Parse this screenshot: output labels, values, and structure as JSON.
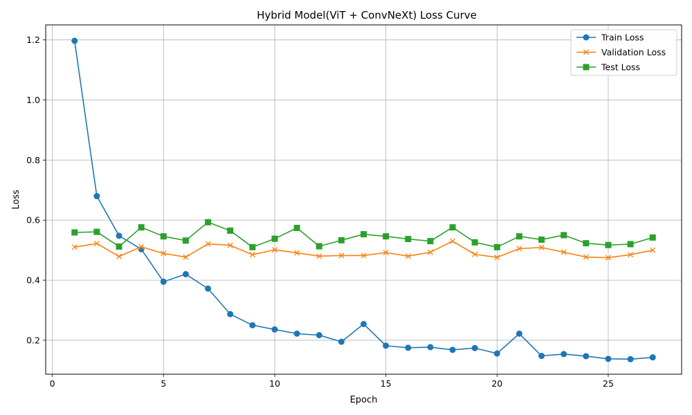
{
  "chart_data": {
    "type": "line",
    "title": "Hybrid Model(ViT + ConvNeXt) Loss Curve",
    "xlabel": "Epoch",
    "ylabel": "Loss",
    "xlim": [
      -0.3,
      28.3
    ],
    "ylim": [
      0.087,
      1.25
    ],
    "xticks": [
      0,
      5,
      10,
      15,
      20,
      25
    ],
    "xtick_labels": [
      "0",
      "5",
      "10",
      "15",
      "20",
      "25"
    ],
    "yticks": [
      0.2,
      0.4,
      0.6,
      0.8,
      1.0,
      1.2
    ],
    "ytick_labels": [
      "0.2",
      "0.4",
      "0.6",
      "0.8",
      "1.0",
      "1.2"
    ],
    "grid": true,
    "legend_position": "top-right",
    "x": [
      1,
      2,
      3,
      4,
      5,
      6,
      7,
      8,
      9,
      10,
      11,
      12,
      13,
      14,
      15,
      16,
      17,
      18,
      19,
      20,
      21,
      22,
      23,
      24,
      25,
      26,
      27
    ],
    "series": [
      {
        "name": "Train Loss",
        "color": "#1f77b4",
        "marker": "circle",
        "values": [
          1.197,
          0.68,
          0.548,
          0.503,
          0.395,
          0.42,
          0.372,
          0.287,
          0.25,
          0.236,
          0.222,
          0.217,
          0.195,
          0.254,
          0.182,
          0.175,
          0.177,
          0.168,
          0.174,
          0.156,
          0.222,
          0.148,
          0.154,
          0.147,
          0.138,
          0.137,
          0.143
        ]
      },
      {
        "name": "Validation Loss",
        "color": "#ff7f0e",
        "marker": "x",
        "values": [
          0.51,
          0.522,
          0.479,
          0.511,
          0.489,
          0.477,
          0.521,
          0.516,
          0.485,
          0.501,
          0.491,
          0.48,
          0.482,
          0.482,
          0.492,
          0.48,
          0.493,
          0.53,
          0.486,
          0.476,
          0.505,
          0.509,
          0.493,
          0.477,
          0.475,
          0.485,
          0.5
        ]
      },
      {
        "name": "Test Loss",
        "color": "#2ca02c",
        "marker": "square",
        "values": [
          0.559,
          0.561,
          0.512,
          0.576,
          0.546,
          0.532,
          0.593,
          0.565,
          0.51,
          0.538,
          0.574,
          0.513,
          0.533,
          0.553,
          0.546,
          0.537,
          0.53,
          0.576,
          0.526,
          0.51,
          0.546,
          0.535,
          0.55,
          0.523,
          0.517,
          0.52,
          0.542
        ]
      }
    ]
  }
}
